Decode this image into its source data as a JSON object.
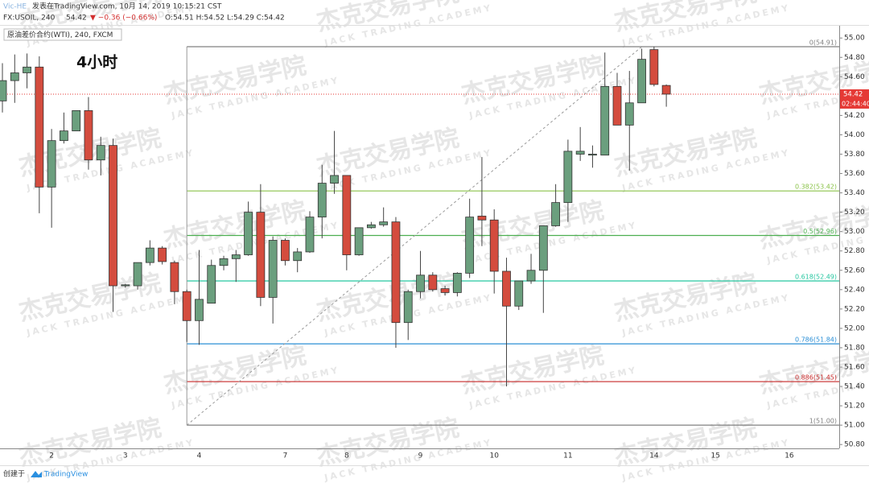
{
  "header": {
    "author": "Vic-HE",
    "published": "发表在TradingView.com, 10月 14, 2019 10:15:21 CST",
    "symbol": "FX:USOIL, 240",
    "last": "54.42",
    "change": "▼ −0.36 (−0.66%)",
    "ohlc": "O:54.51 H:54.52 L:54.29 C:54.42"
  },
  "watermark": {
    "cn": "杰克交易学院",
    "en": "JACK TRADING ACADEMY"
  },
  "footer": {
    "created": "创建于",
    "brand": "TradingView"
  },
  "chart_data": {
    "type": "candlestick",
    "legend": "原油差价合约(WTI), 240, FXCM",
    "annotation": "4小时",
    "categories": [
      null,
      null,
      null,
      null,
      "2",
      null,
      null,
      null,
      null,
      null,
      "3",
      null,
      null,
      null,
      null,
      null,
      "4",
      null,
      null,
      null,
      null,
      null,
      null,
      "7",
      null,
      null,
      null,
      null,
      "8",
      null,
      null,
      null,
      null,
      null,
      "9",
      null,
      null,
      null,
      null,
      null,
      "10",
      null,
      null,
      null,
      null,
      null,
      "11",
      null,
      null,
      null,
      null,
      null,
      null,
      "14",
      null,
      null,
      null,
      null,
      "15",
      null,
      null,
      null,
      null,
      null,
      "16"
    ],
    "open": [
      54.35,
      54.56,
      54.64,
      54.7,
      53.46,
      53.94,
      54.04,
      54.25,
      53.74,
      53.89,
      52.44,
      52.44,
      52.68,
      52.83,
      52.68,
      52.38,
      52.08,
      52.26,
      52.65,
      52.72,
      52.76,
      53.2,
      52.32,
      52.91,
      52.7,
      52.79,
      53.15,
      53.5,
      53.58,
      52.76,
      53.04,
      53.07,
      53.1,
      52.06,
      52.38,
      52.55,
      52.41,
      52.37,
      52.57,
      53.16,
      53.12,
      52.59,
      52.23,
      52.49,
      52.6,
      53.06,
      53.3,
      53.8,
      53.79,
      53.79,
      54.5,
      54.1,
      54.33,
      54.88,
      54.51,
      null,
      null,
      null,
      null,
      null,
      null,
      null,
      null,
      null,
      null
    ],
    "high": [
      54.74,
      54.83,
      54.84,
      54.81,
      54.06,
      54.23,
      54.25,
      54.39,
      53.98,
      53.96,
      52.46,
      52.68,
      52.91,
      52.85,
      52.7,
      52.4,
      52.81,
      52.71,
      52.75,
      52.81,
      53.31,
      53.49,
      52.95,
      52.93,
      52.83,
      53.21,
      53.69,
      54.04,
      53.58,
      53.04,
      53.1,
      53.25,
      53.15,
      52.4,
      52.8,
      52.58,
      52.44,
      52.58,
      53.34,
      53.77,
      53.23,
      52.73,
      52.49,
      52.77,
      53.06,
      53.49,
      53.95,
      54.08,
      53.89,
      54.85,
      54.64,
      54.66,
      54.89,
      54.91,
      54.52,
      null,
      null,
      null,
      null,
      null,
      null,
      null,
      null,
      null,
      null
    ],
    "low": [
      54.23,
      54.33,
      54.48,
      53.19,
      53.04,
      53.91,
      54.04,
      53.64,
      53.58,
      52.17,
      52.42,
      52.4,
      52.65,
      52.66,
      52.25,
      51.86,
      51.83,
      52.26,
      52.6,
      52.48,
      52.75,
      52.23,
      52.05,
      52.65,
      52.58,
      52.78,
      52.93,
      53.39,
      52.6,
      52.75,
      53.03,
      53.05,
      51.8,
      51.88,
      52.31,
      52.38,
      52.34,
      52.33,
      52.52,
      52.85,
      52.36,
      51.4,
      52.19,
      52.46,
      52.16,
      53.05,
      53.1,
      53.73,
      53.66,
      53.79,
      54.1,
      53.63,
      54.33,
      54.5,
      54.29,
      null,
      null,
      null,
      null,
      null,
      null,
      null,
      null,
      null,
      null
    ],
    "close": [
      54.56,
      54.64,
      54.7,
      53.46,
      53.94,
      54.04,
      54.25,
      53.74,
      53.89,
      52.44,
      52.45,
      52.68,
      52.83,
      52.69,
      52.38,
      52.08,
      52.3,
      52.65,
      52.72,
      52.76,
      53.2,
      52.32,
      52.91,
      52.7,
      52.79,
      53.15,
      53.5,
      53.58,
      52.76,
      53.04,
      53.07,
      53.1,
      52.06,
      52.38,
      52.55,
      52.4,
      52.37,
      52.57,
      53.15,
      53.12,
      52.59,
      52.23,
      52.49,
      52.6,
      53.06,
      53.3,
      53.83,
      53.83,
      53.8,
      54.5,
      54.1,
      54.33,
      54.78,
      54.52,
      54.42,
      null,
      null,
      null,
      null,
      null,
      null,
      null,
      null,
      null,
      null
    ],
    "up_color": "#6b9f7e",
    "down_color": "#d44c3e",
    "ylim": [
      50.76,
      55.06
    ],
    "yticks": [
      {
        "value": 50.8,
        "label": "50.80"
      },
      {
        "value": 51,
        "label": "51.00"
      },
      {
        "value": 51.2,
        "label": "51.20"
      },
      {
        "value": 51.4,
        "label": "51.40"
      },
      {
        "value": 51.6,
        "label": "51.60"
      },
      {
        "value": 51.8,
        "label": "51.80"
      },
      {
        "value": 52,
        "label": "52.00"
      },
      {
        "value": 52.2,
        "label": "52.20"
      },
      {
        "value": 52.4,
        "label": "52.40"
      },
      {
        "value": 52.6,
        "label": "52.60"
      },
      {
        "value": 52.8,
        "label": "52.80"
      },
      {
        "value": 53,
        "label": "53.00"
      },
      {
        "value": 53.2,
        "label": "53.20"
      },
      {
        "value": 53.4,
        "label": "53.40"
      },
      {
        "value": 53.6,
        "label": "53.60"
      },
      {
        "value": 53.8,
        "label": "53.80"
      },
      {
        "value": 54,
        "label": "54.00"
      },
      {
        "value": 54.2,
        "label": "54.20"
      },
      {
        "value": 54.4,
        "label": "54.40"
      },
      {
        "value": 54.6,
        "label": "54.60"
      },
      {
        "value": 54.8,
        "label": "54.80"
      },
      {
        "value": 55,
        "label": "55.00"
      }
    ],
    "grid": false,
    "last_price": 54.42,
    "last_price_color": "#e53935",
    "countdown": "02:44:40",
    "fib": {
      "start_index": 15,
      "levels": [
        {
          "label": "0(54.91)",
          "price": 54.91,
          "color": "#808080"
        },
        {
          "label": "0.382(53.42)",
          "price": 53.42,
          "color": "#8bc34a"
        },
        {
          "label": "0.5(52.96)",
          "price": 52.96,
          "color": "#4caf50"
        },
        {
          "label": "0.618(52.49)",
          "price": 52.49,
          "color": "#26c6a0"
        },
        {
          "label": "0.786(51.84)",
          "price": 51.84,
          "color": "#2b8fd6"
        },
        {
          "label": "0.886(51.45)",
          "price": 51.45,
          "color": "#c62828"
        },
        {
          "label": "1(51.00)",
          "price": 51.0,
          "color": "#808080"
        }
      ],
      "trend_x": [
        15,
        52
      ],
      "trend_y": [
        51.0,
        54.91
      ]
    }
  }
}
